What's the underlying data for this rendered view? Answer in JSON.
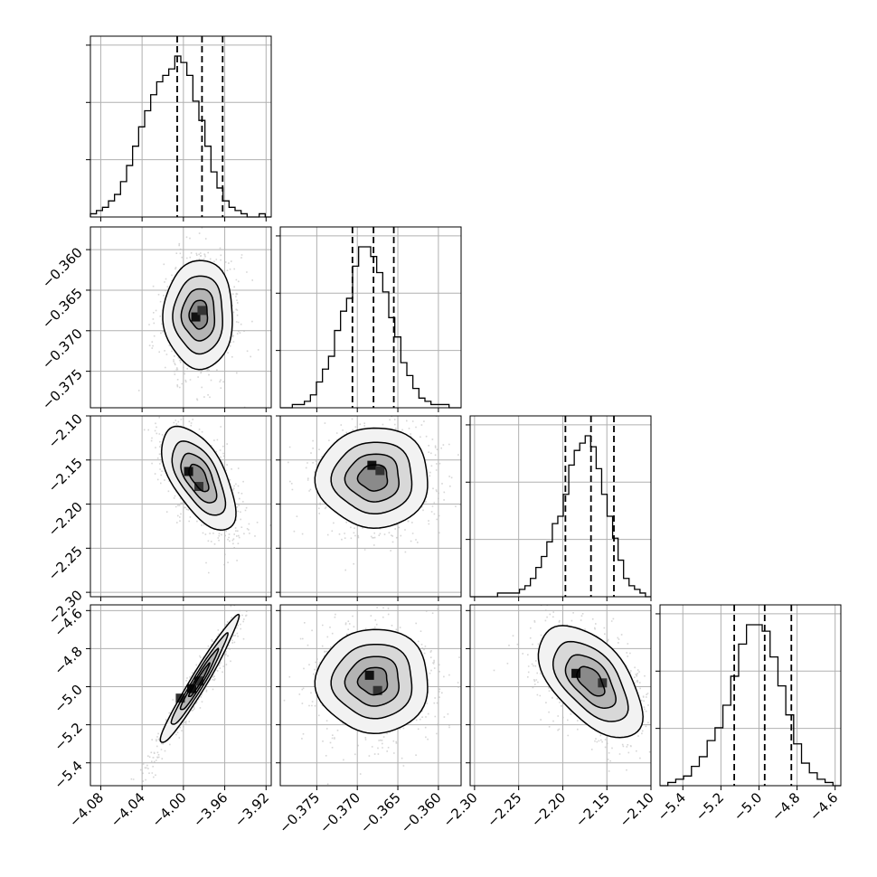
{
  "chart_data": {
    "type": "corner",
    "title": "",
    "grid": true,
    "parameters": [
      {
        "index": 0,
        "range": [
          -4.09,
          -3.915
        ],
        "ticks": [
          -4.08,
          -4.04,
          -4.0,
          -3.96,
          -3.92
        ],
        "tick_labels": [
          "−4.08",
          "−4.04",
          "−4.00",
          "−3.96",
          "−3.92"
        ],
        "quantiles": [
          -4.006,
          -3.982,
          -3.962
        ],
        "hist_counts": [
          1,
          2,
          3,
          5,
          7,
          11,
          16,
          22,
          28,
          33,
          38,
          42,
          44,
          46,
          50,
          48,
          44,
          36,
          30,
          22,
          14,
          9,
          5,
          3,
          2,
          1,
          0,
          0,
          1,
          0
        ],
        "hist_max": 50
      },
      {
        "index": 1,
        "range": [
          -0.3795,
          -0.3572
        ],
        "ticks": [
          -0.375,
          -0.37,
          -0.365,
          -0.36
        ],
        "tick_labels": [
          "−0.375",
          "−0.370",
          "−0.365",
          "−0.360"
        ],
        "quantiles": [
          -0.3706,
          -0.368,
          -0.3655
        ],
        "hist_counts": [
          0,
          0,
          1,
          1,
          2,
          4,
          8,
          12,
          16,
          24,
          30,
          34,
          44,
          50,
          50,
          47,
          42,
          36,
          28,
          22,
          14,
          10,
          6,
          3,
          2,
          1,
          1,
          1,
          0,
          0
        ],
        "hist_max": 50
      },
      {
        "index": 2,
        "range": [
          -2.305,
          -2.1
        ],
        "ticks": [
          -2.3,
          -2.25,
          -2.2,
          -2.15,
          -2.1
        ],
        "tick_labels": [
          "−2.30",
          "−2.25",
          "−2.20",
          "−2.15",
          "−2.10"
        ],
        "quantiles": [
          -2.197,
          -2.168,
          -2.142
        ],
        "hist_counts": [
          0,
          0,
          0,
          0,
          0,
          1,
          1,
          1,
          1,
          2,
          3,
          5,
          8,
          11,
          15,
          20,
          22,
          28,
          36,
          40,
          42,
          44,
          41,
          35,
          28,
          22,
          16,
          10,
          5,
          3,
          2,
          1,
          0
        ],
        "hist_max": 44
      },
      {
        "index": 3,
        "range": [
          -5.52,
          -4.57
        ],
        "ticks": [
          -5.4,
          -5.2,
          -5.0,
          -4.8,
          -4.6
        ],
        "tick_labels": [
          "−5.4",
          "−5.2",
          "−5.0",
          "−4.8",
          "−4.6"
        ],
        "y_tick_labels": [
          "−5.4",
          "−5.2",
          "−5.0",
          "−4.8",
          "−4.6"
        ],
        "quantiles": [
          -5.13,
          -4.97,
          -4.83
        ],
        "hist_counts": [
          0,
          1,
          2,
          3,
          6,
          9,
          14,
          18,
          25,
          34,
          44,
          50,
          50,
          48,
          40,
          31,
          22,
          13,
          7,
          4,
          2,
          1,
          0
        ],
        "hist_max": 50
      }
    ],
    "pairs": [
      {
        "x": 0,
        "y": 1,
        "center": [
          -3.985,
          -0.368
        ],
        "sigma": [
          0.016,
          0.0032
        ],
        "rho": 0.0,
        "peaks": [
          [
            -3.988,
            -0.3683
          ],
          [
            -3.982,
            -0.3675
          ]
        ]
      },
      {
        "x": 0,
        "y": 2,
        "center": [
          -3.985,
          -2.17
        ],
        "sigma": [
          0.017,
          0.028
        ],
        "rho": -0.6,
        "peaks": [
          [
            -3.995,
            -2.163
          ],
          [
            -3.985,
            -2.18
          ]
        ]
      },
      {
        "x": 1,
        "y": 2,
        "center": [
          -0.368,
          -2.17
        ],
        "sigma": [
          0.0033,
          0.027
        ],
        "rho": 0.0,
        "peaks": [
          [
            -0.3682,
            -2.156
          ],
          [
            -0.3672,
            -2.162
          ]
        ]
      },
      {
        "x": 0,
        "y": 3,
        "center": [
          -3.985,
          -4.97
        ],
        "sigma": [
          0.018,
          0.16
        ],
        "rho": 0.97,
        "peaks": [
          [
            -3.992,
            -5.01
          ],
          [
            -3.985,
            -4.97
          ],
          [
            -4.003,
            -5.06
          ]
        ]
      },
      {
        "x": 1,
        "y": 3,
        "center": [
          -0.368,
          -4.97
        ],
        "sigma": [
          0.0033,
          0.13
        ],
        "rho": 0.0,
        "peaks": [
          [
            -0.3685,
            -4.94
          ],
          [
            -0.3675,
            -5.02
          ]
        ]
      },
      {
        "x": 2,
        "y": 3,
        "center": [
          -2.168,
          -4.97
        ],
        "sigma": [
          0.028,
          0.14
        ],
        "rho": -0.55,
        "peaks": [
          [
            -2.185,
            -4.93
          ],
          [
            -2.155,
            -4.98
          ]
        ]
      }
    ]
  }
}
